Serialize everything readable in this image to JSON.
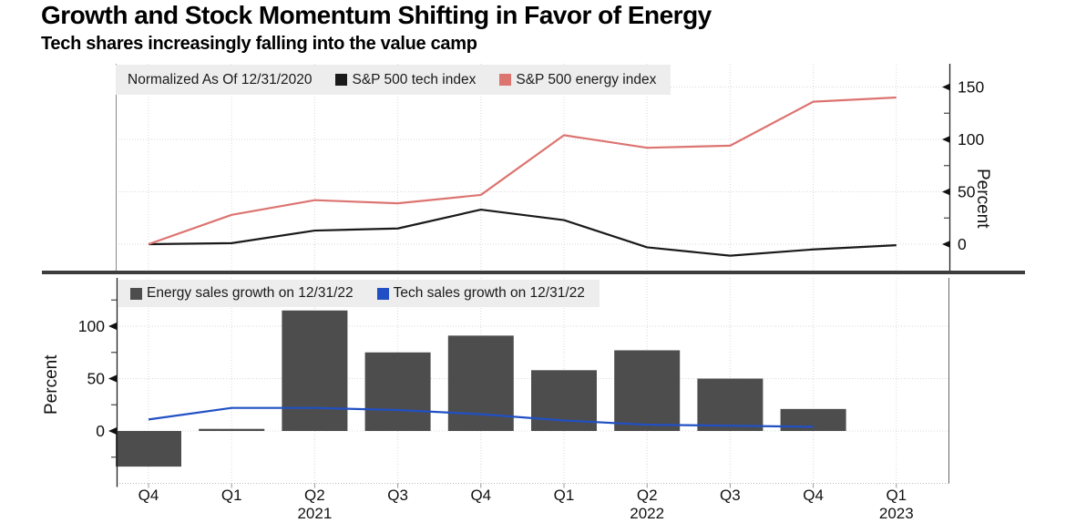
{
  "header": {
    "title": "Growth and Stock Momentum Shifting in Favor of Energy",
    "subtitle": "Tech shares increasingly falling into the value camp"
  },
  "colors": {
    "tech_line": "#1a1a1a",
    "energy_line": "#dc7470",
    "energy_bar": "#4d4d4d",
    "tech_sales_line": "#2150c4",
    "legend_bg": "#ededed",
    "grid": "#d9d9d9",
    "axis": "#333333",
    "divider": "#3d3d3d"
  },
  "xaxis": {
    "categories": [
      "Q4",
      "Q1",
      "Q2",
      "Q3",
      "Q4",
      "Q1",
      "Q2",
      "Q3",
      "Q4",
      "Q1"
    ],
    "years": [
      {
        "index": 2,
        "label": "2021"
      },
      {
        "index": 6,
        "label": "2022"
      },
      {
        "index": 9,
        "label": "2023"
      }
    ]
  },
  "chart_data": [
    {
      "type": "line",
      "note": "Normalized As Of 12/31/2020",
      "categories": [
        "Q4 2020",
        "Q1 2021",
        "Q2 2021",
        "Q3 2021",
        "Q4 2021",
        "Q1 2022",
        "Q2 2022",
        "Q3 2022",
        "Q4 2022",
        "Q1 2023"
      ],
      "series": [
        {
          "name": "S&P 500 tech index",
          "color": "#1a1a1a",
          "values": [
            0,
            1,
            13,
            15,
            33,
            23,
            -3,
            -11,
            -5,
            -1
          ]
        },
        {
          "name": "S&P 500 energy index",
          "color": "#dc7470",
          "values": [
            0,
            28,
            42,
            39,
            47,
            104,
            92,
            94,
            136,
            140
          ]
        }
      ],
      "ylabel": "Percent",
      "yticks": [
        0,
        50,
        100,
        150
      ],
      "ylim": [
        -27,
        171
      ],
      "grid": true,
      "y_axis_side": "right",
      "legend_position": "top-left"
    },
    {
      "type": "bar",
      "categories": [
        "Q4 2020",
        "Q1 2021",
        "Q2 2021",
        "Q3 2021",
        "Q4 2021",
        "Q1 2022",
        "Q2 2022",
        "Q3 2022",
        "Q4 2022",
        "Q1 2023"
      ],
      "series": [
        {
          "name": "Energy sales growth on 12/31/22",
          "render": "bar",
          "color": "#4d4d4d",
          "values": [
            -34,
            2,
            115,
            75,
            91,
            58,
            77,
            50,
            21,
            null
          ]
        },
        {
          "name": "Tech sales growth on 12/31/22",
          "render": "line",
          "color": "#2150c4",
          "values": [
            11,
            22,
            22,
            20,
            16,
            10,
            6,
            5,
            4,
            null
          ]
        }
      ],
      "ylabel": "Percent",
      "yticks": [
        0,
        50,
        100
      ],
      "ylim": [
        -50,
        146
      ],
      "grid": true,
      "y_axis_side": "left",
      "legend_position": "top-left"
    }
  ]
}
